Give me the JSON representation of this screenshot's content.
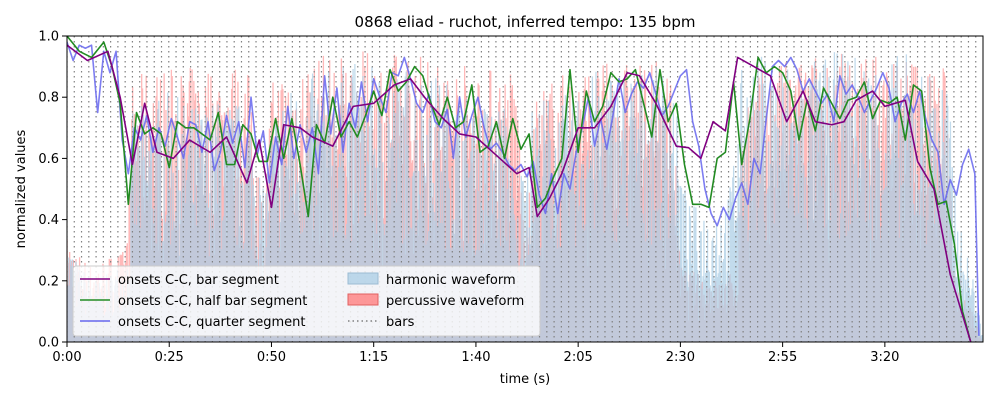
{
  "chart_data": {
    "type": "line",
    "title": "0868 eliad - ruchot, inferred tempo: 135 bpm",
    "xlabel": "time (s)",
    "ylabel": "normalized values",
    "xlim": [
      0,
      224
    ],
    "ylim": [
      0.0,
      1.0
    ],
    "x_ticks": [
      {
        "value": 0,
        "label": "0:00"
      },
      {
        "value": 25,
        "label": "0:25"
      },
      {
        "value": 50,
        "label": "0:50"
      },
      {
        "value": 75,
        "label": "1:15"
      },
      {
        "value": 100,
        "label": "1:40"
      },
      {
        "value": 125,
        "label": "2:05"
      },
      {
        "value": 150,
        "label": "2:30"
      },
      {
        "value": 175,
        "label": "2:55"
      },
      {
        "value": 200,
        "label": "3:20"
      }
    ],
    "y_ticks": [
      {
        "value": 0.0,
        "label": "0.0"
      },
      {
        "value": 0.2,
        "label": "0.2"
      },
      {
        "value": 0.4,
        "label": "0.4"
      },
      {
        "value": 0.6,
        "label": "0.6"
      },
      {
        "value": 0.8,
        "label": "0.8"
      },
      {
        "value": 1.0,
        "label": "1.0"
      }
    ],
    "legend_position": "lower-left",
    "bar_interval_s": 1.7778,
    "colors": {
      "bar_segment": "#800080",
      "half_bar_segment": "#228B22",
      "quarter_segment": "#6666ee",
      "harmonic": "#aecfe6",
      "percussive": "#ff7f7f",
      "bars": "#808080"
    },
    "series": [
      {
        "name": "onsets C-C, bar segment",
        "kind": "line",
        "color": "#800080",
        "x": [
          0,
          5,
          10,
          13,
          16,
          19,
          22,
          26,
          30,
          35,
          39,
          44,
          47,
          50,
          53,
          57,
          60,
          65,
          70,
          75,
          80,
          84,
          88,
          92,
          96,
          100,
          105,
          110,
          113,
          115,
          118,
          121,
          125,
          129,
          133,
          137,
          140,
          144,
          149,
          152,
          155,
          158,
          161,
          164,
          168,
          172,
          176,
          180,
          183,
          187,
          190,
          193,
          197,
          200,
          205,
          208,
          212,
          216,
          221
        ],
        "y": [
          0.97,
          0.92,
          0.95,
          0.8,
          0.58,
          0.78,
          0.62,
          0.6,
          0.66,
          0.62,
          0.67,
          0.52,
          0.66,
          0.44,
          0.71,
          0.7,
          0.67,
          0.64,
          0.77,
          0.78,
          0.84,
          0.86,
          0.79,
          0.73,
          0.68,
          0.67,
          0.61,
          0.55,
          0.57,
          0.41,
          0.47,
          0.55,
          0.7,
          0.7,
          0.77,
          0.88,
          0.87,
          0.78,
          0.64,
          0.635,
          0.6,
          0.72,
          0.69,
          0.93,
          0.9,
          0.87,
          0.72,
          0.82,
          0.72,
          0.71,
          0.72,
          0.79,
          0.82,
          0.77,
          0.79,
          0.59,
          0.5,
          0.22,
          0.0
        ]
      },
      {
        "name": "onsets C-C, half bar segment",
        "kind": "line",
        "color": "#228B22",
        "x": [
          0,
          3,
          6,
          9,
          11,
          13,
          15,
          17,
          19,
          21,
          23,
          25,
          27,
          29,
          31,
          33,
          35,
          37,
          39,
          41,
          43,
          45,
          47,
          49,
          51,
          53,
          55,
          57,
          59,
          61,
          63,
          65,
          67,
          69,
          71,
          73,
          75,
          77,
          79,
          81,
          83,
          85,
          87,
          89,
          91,
          93,
          95,
          97,
          99,
          101,
          103,
          105,
          107,
          109,
          111,
          113,
          115,
          117,
          119,
          121,
          123,
          125,
          127,
          129,
          131,
          133,
          135,
          137,
          139,
          141,
          143,
          145,
          147,
          149,
          151,
          153,
          155,
          157,
          159,
          161,
          163,
          165,
          167,
          169,
          171,
          173,
          175,
          177,
          179,
          181,
          183,
          185,
          187,
          189,
          191,
          193,
          195,
          197,
          199,
          201,
          203,
          205,
          207,
          209,
          211,
          213,
          215,
          217,
          219,
          221
        ],
        "y": [
          1.0,
          0.95,
          0.93,
          0.98,
          0.9,
          0.78,
          0.45,
          0.75,
          0.68,
          0.7,
          0.68,
          0.57,
          0.72,
          0.7,
          0.7,
          0.68,
          0.66,
          0.75,
          0.58,
          0.58,
          0.71,
          0.68,
          0.59,
          0.59,
          0.73,
          0.6,
          0.73,
          0.58,
          0.41,
          0.71,
          0.65,
          0.8,
          0.67,
          0.72,
          0.67,
          0.74,
          0.82,
          0.74,
          0.89,
          0.82,
          0.85,
          0.9,
          0.87,
          0.78,
          0.71,
          0.8,
          0.7,
          0.72,
          0.84,
          0.62,
          0.64,
          0.72,
          0.6,
          0.73,
          0.63,
          0.68,
          0.44,
          0.47,
          0.54,
          0.6,
          0.89,
          0.62,
          0.82,
          0.72,
          0.77,
          0.88,
          0.85,
          0.86,
          0.89,
          0.78,
          0.67,
          0.89,
          0.72,
          0.78,
          0.58,
          0.45,
          0.45,
          0.44,
          0.6,
          0.62,
          0.85,
          0.58,
          0.73,
          0.93,
          0.88,
          0.9,
          0.88,
          0.82,
          0.66,
          0.79,
          0.69,
          0.83,
          0.78,
          0.73,
          0.79,
          0.8,
          0.85,
          0.73,
          0.79,
          0.78,
          0.8,
          0.66,
          0.84,
          0.82,
          0.57,
          0.45,
          0.46,
          0.32,
          0.1,
          0.0
        ]
      },
      {
        "name": "onsets C-C, quarter segment",
        "kind": "line",
        "color": "#6666ee",
        "x": [
          0,
          1.5,
          3,
          4.5,
          6,
          7.5,
          9,
          10.5,
          12,
          13.5,
          15,
          16.5,
          18,
          19.5,
          21,
          22.5,
          24,
          25.5,
          27,
          28.5,
          30,
          31.5,
          33,
          34.5,
          36,
          37.5,
          39,
          40.5,
          42,
          43.5,
          45,
          46.5,
          48,
          49.5,
          51,
          52.5,
          54,
          55.5,
          57,
          58.5,
          60,
          61.5,
          63,
          64.5,
          66,
          67.5,
          69,
          70.5,
          72,
          73.5,
          75,
          76.5,
          78,
          79.5,
          81,
          82.5,
          84,
          85.5,
          87,
          88.5,
          90,
          91.5,
          93,
          94.5,
          96,
          97.5,
          99,
          100.5,
          102,
          103.5,
          105,
          106.5,
          108,
          109.5,
          111,
          112.5,
          114,
          115.5,
          117,
          118.5,
          120,
          121.5,
          123,
          124.5,
          126,
          127.5,
          129,
          130.5,
          132,
          133.5,
          135,
          136.5,
          138,
          139.5,
          141,
          142.5,
          144,
          145.5,
          147,
          148.5,
          150,
          151.5,
          153,
          154.5,
          156,
          157.5,
          159,
          160.5,
          162,
          163.5,
          165,
          166.5,
          168,
          169.5,
          171,
          172.5,
          174,
          175.5,
          177,
          178.5,
          180,
          181.5,
          183,
          184.5,
          186,
          187.5,
          189,
          190.5,
          192,
          193.5,
          195,
          196.5,
          198,
          199.5,
          201,
          202.5,
          204,
          205.5,
          207,
          208.5,
          210,
          211.5,
          213,
          214.5,
          216,
          217.5,
          219,
          220.5,
          222,
          223
        ],
        "y": [
          0.98,
          0.92,
          0.97,
          0.96,
          0.97,
          0.75,
          0.95,
          0.88,
          0.95,
          0.66,
          0.55,
          0.7,
          0.66,
          0.74,
          0.62,
          0.7,
          0.64,
          0.73,
          0.67,
          0.6,
          0.72,
          0.71,
          0.62,
          0.72,
          0.56,
          0.62,
          0.74,
          0.65,
          0.72,
          0.57,
          0.8,
          0.61,
          0.69,
          0.52,
          0.67,
          0.58,
          0.77,
          0.6,
          0.71,
          0.62,
          0.7,
          0.55,
          0.87,
          0.68,
          0.83,
          0.62,
          0.78,
          0.7,
          0.85,
          0.72,
          0.86,
          0.8,
          0.75,
          0.88,
          0.87,
          0.93,
          0.86,
          0.78,
          0.75,
          0.81,
          0.72,
          0.7,
          0.76,
          0.6,
          0.8,
          0.67,
          0.74,
          0.8,
          0.7,
          0.63,
          0.65,
          0.62,
          0.58,
          0.56,
          0.58,
          0.54,
          0.59,
          0.48,
          0.42,
          0.55,
          0.42,
          0.55,
          0.5,
          0.62,
          0.7,
          0.8,
          0.64,
          0.73,
          0.63,
          0.74,
          0.86,
          0.75,
          0.81,
          0.85,
          0.83,
          0.88,
          0.81,
          0.74,
          0.77,
          0.82,
          0.87,
          0.89,
          0.72,
          0.64,
          0.5,
          0.42,
          0.38,
          0.44,
          0.4,
          0.47,
          0.52,
          0.45,
          0.6,
          0.55,
          0.73,
          0.9,
          0.92,
          0.9,
          0.93,
          0.89,
          0.82,
          0.86,
          0.82,
          0.78,
          0.81,
          0.72,
          0.87,
          0.81,
          0.84,
          0.8,
          0.75,
          0.79,
          0.83,
          0.88,
          0.83,
          0.72,
          0.78,
          0.81,
          0.75,
          0.82,
          0.73,
          0.66,
          0.62,
          0.45,
          0.53,
          0.48,
          0.58,
          0.63,
          0.55,
          0.02
        ]
      },
      {
        "name": "harmonic waveform",
        "kind": "fill",
        "color": "#aecfe6"
      },
      {
        "name": "percussive waveform",
        "kind": "fill",
        "color": "#ff7f7f"
      },
      {
        "name": "bars",
        "kind": "vlines",
        "color": "#808080"
      }
    ],
    "waveforms": {
      "harmonic_envelope": {
        "x": [
          0,
          3,
          8,
          12,
          15,
          16,
          20,
          25,
          30,
          35,
          40,
          45,
          48,
          50,
          52,
          55,
          60,
          65,
          70,
          75,
          80,
          85,
          90,
          95,
          100,
          105,
          108,
          110,
          112,
          115,
          118,
          121,
          125,
          130,
          135,
          140,
          145,
          148,
          150,
          152,
          155,
          158,
          162,
          165,
          170,
          175,
          180,
          185,
          190,
          195,
          200,
          205,
          210,
          215,
          218,
          220,
          222,
          224
        ],
        "y": [
          0.35,
          0.25,
          0.2,
          0.25,
          0.3,
          0.75,
          0.8,
          0.82,
          0.78,
          0.8,
          0.8,
          0.78,
          0.5,
          0.75,
          0.82,
          0.85,
          0.88,
          0.9,
          0.92,
          0.9,
          0.9,
          0.92,
          0.88,
          0.85,
          0.8,
          0.8,
          0.78,
          0.4,
          0.75,
          0.8,
          0.82,
          0.8,
          0.85,
          0.9,
          0.92,
          0.9,
          0.9,
          0.95,
          0.6,
          0.45,
          0.45,
          0.45,
          0.5,
          0.9,
          0.95,
          0.95,
          0.9,
          0.95,
          0.95,
          0.95,
          0.95,
          0.95,
          0.9,
          0.9,
          0.4,
          0.3,
          0.2,
          0.0
        ]
      },
      "percussive_envelope": {
        "x": [
          0,
          2,
          4,
          6,
          10,
          14,
          15,
          16,
          20,
          30,
          40,
          45,
          48,
          50,
          52,
          55,
          65,
          75,
          85,
          95,
          105,
          110,
          112,
          115,
          125,
          135,
          145,
          148,
          150,
          155,
          160,
          164,
          165,
          175,
          185,
          195,
          205,
          215,
          217,
          220,
          224
        ],
        "y": [
          0.35,
          0.3,
          0.28,
          0.25,
          0.28,
          0.3,
          0.4,
          0.85,
          0.9,
          0.9,
          0.92,
          0.88,
          0.4,
          0.85,
          0.9,
          0.92,
          0.95,
          0.95,
          0.95,
          0.92,
          0.9,
          0.9,
          0.3,
          0.85,
          0.9,
          0.92,
          0.92,
          0.88,
          0.25,
          0.22,
          0.2,
          0.25,
          0.85,
          0.92,
          0.95,
          0.95,
          0.95,
          0.9,
          0.3,
          0.15,
          0.0
        ]
      }
    }
  }
}
